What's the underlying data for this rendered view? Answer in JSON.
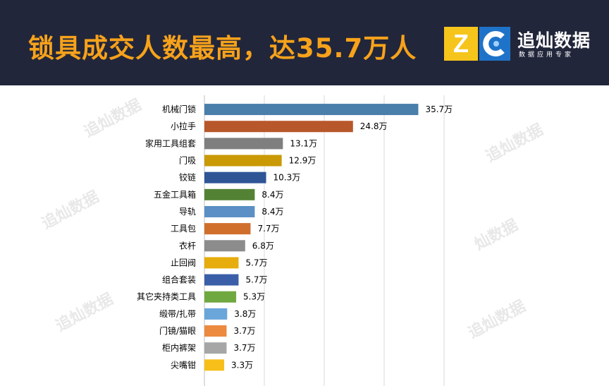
{
  "header": {
    "title": "锁具成交人数最高，达35.7万人"
  },
  "logo": {
    "mark_left": "Z",
    "name": "追灿数据",
    "tagline": "数据应用专家"
  },
  "watermarks": [
    "追灿数据",
    "追灿数据",
    "追灿数据",
    "追灿数据",
    "追灿数据",
    "灿数据"
  ],
  "chart_data": {
    "type": "bar",
    "orientation": "horizontal",
    "categories": [
      "机械门锁",
      "小拉手",
      "家用工具组套",
      "门吸",
      "铰链",
      "五金工具箱",
      "导轨",
      "工具包",
      "衣杆",
      "止回阀",
      "组合套装",
      "其它夹持类工具",
      "缎带/扎带",
      "门镜/猫眼",
      "柜内裤架",
      "尖嘴钳"
    ],
    "values": [
      35.7,
      24.8,
      13.1,
      12.9,
      10.3,
      8.4,
      8.4,
      7.7,
      6.8,
      5.7,
      5.7,
      5.3,
      3.8,
      3.7,
      3.7,
      3.3
    ],
    "data_labels": [
      "35.7万",
      "24.8万",
      "13.1万",
      "12.9万",
      "10.3万",
      "8.4万",
      "8.4万",
      "7.7万",
      "6.8万",
      "5.7万",
      "5.7万",
      "5.3万",
      "3.8万",
      "3.7万",
      "3.7万",
      "3.3万"
    ],
    "colors": [
      "#4a7eab",
      "#b8572a",
      "#7f7f7f",
      "#c99a06",
      "#2f5597",
      "#548235",
      "#5b8fc5",
      "#d06f2b",
      "#8c8c8c",
      "#e6ad0c",
      "#3a5fa8",
      "#70a840",
      "#6aa6da",
      "#ec8a3f",
      "#a6a6a6",
      "#f7bf1a"
    ],
    "xlim": [
      0,
      40
    ],
    "grid": true
  }
}
